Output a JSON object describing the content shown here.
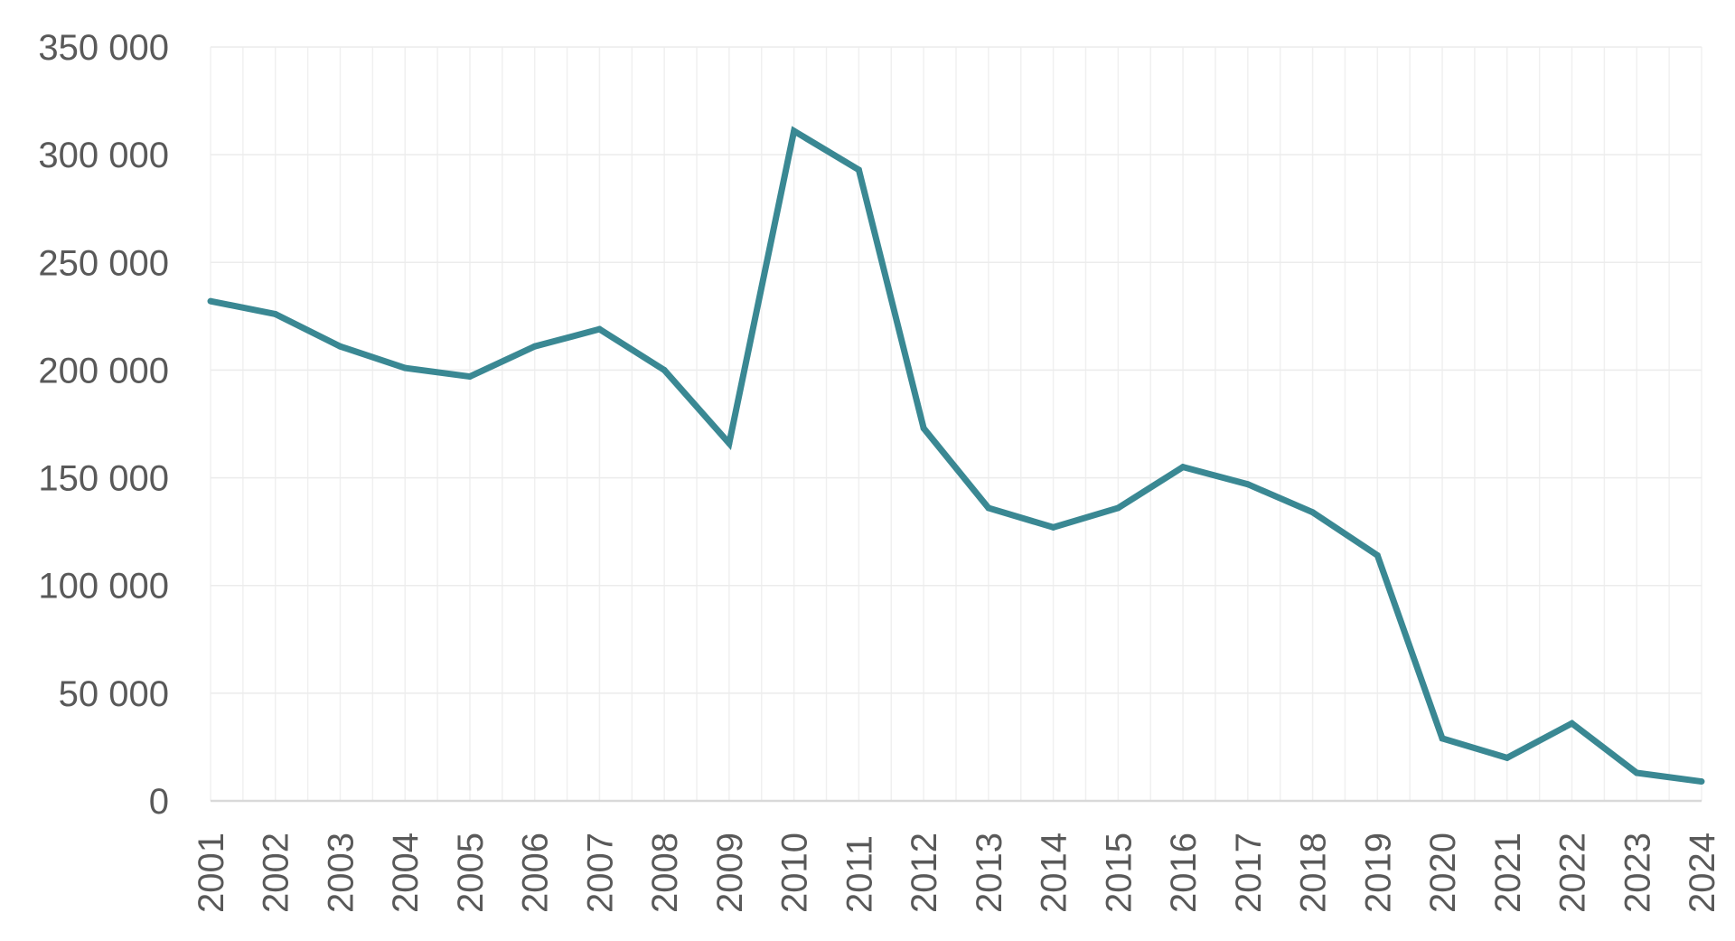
{
  "chart_data": {
    "type": "line",
    "title": "",
    "xlabel": "",
    "ylabel": "",
    "categories": [
      "2001",
      "2002",
      "2003",
      "2004",
      "2005",
      "2006",
      "2007",
      "2008",
      "2009",
      "2010",
      "2011",
      "2012",
      "2013",
      "2014",
      "2015",
      "2016",
      "2017",
      "2018",
      "2019",
      "2020",
      "2021",
      "2022",
      "2023",
      "2024"
    ],
    "series": [
      {
        "values": [
          232000,
          226000,
          211000,
          201000,
          197000,
          211000,
          219000,
          200000,
          166000,
          311000,
          293000,
          173000,
          136000,
          127000,
          136000,
          155000,
          147000,
          134000,
          114000,
          29000,
          20000,
          36000,
          13000,
          9000
        ],
        "color": "#3a8893"
      }
    ],
    "ylim": [
      0,
      350000
    ],
    "y_ticks": [
      0,
      50000,
      100000,
      150000,
      200000,
      250000,
      300000,
      350000
    ],
    "y_tick_labels": [
      "0",
      "50 000",
      "100 000",
      "150 000",
      "200 000",
      "250 000",
      "300 000",
      "350 000"
    ],
    "grid": true,
    "legend": "none"
  }
}
